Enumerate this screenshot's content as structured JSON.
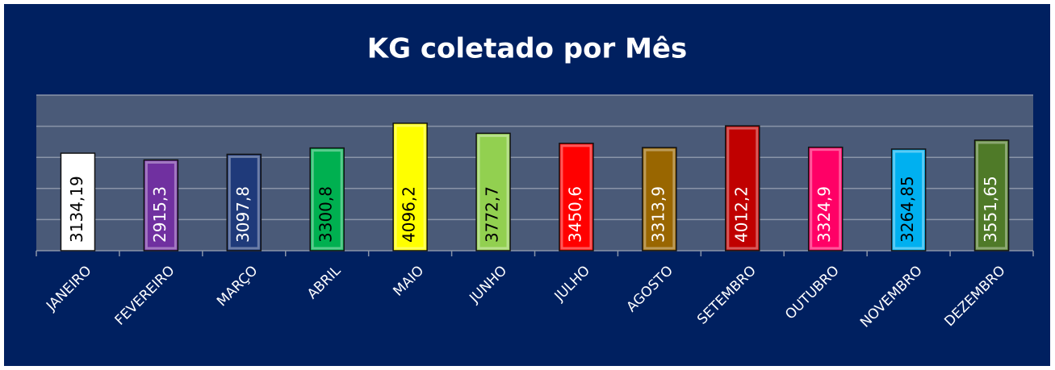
{
  "chart_data": {
    "type": "bar",
    "title": "KG coletado por Mês",
    "categories": [
      "JANEIRO",
      "FEVEREIRO",
      "MARÇO",
      "ABRIL",
      "MAIO",
      "JUNHO",
      "JULHO",
      "AGOSTO",
      "SETEMBRO",
      "OUTUBRO",
      "NOVEMBRO",
      "DEZEMBRO"
    ],
    "values": [
      3134.19,
      2915.3,
      3097.8,
      3300.8,
      4096.2,
      3772.7,
      3450.6,
      3313.9,
      4012.2,
      3324.9,
      3264.85,
      3551.65
    ],
    "value_labels": [
      "3134,19",
      "2915,3",
      "3097,8",
      "3300,8",
      "4096,2",
      "3772,7",
      "3450,6",
      "3313,9",
      "4012,2",
      "3324,9",
      "3264,85",
      "3551,65"
    ],
    "colors": [
      "#ffffff",
      "#7030a0",
      "#1f3a7a",
      "#00b050",
      "#ffff00",
      "#92d050",
      "#ff0000",
      "#996600",
      "#c00000",
      "#ff0066",
      "#00b0f0",
      "#4f7a28"
    ],
    "ylim": [
      0,
      5000
    ],
    "yticks": [
      0,
      1000,
      2000,
      3000,
      4000,
      5000
    ],
    "grid": true
  }
}
